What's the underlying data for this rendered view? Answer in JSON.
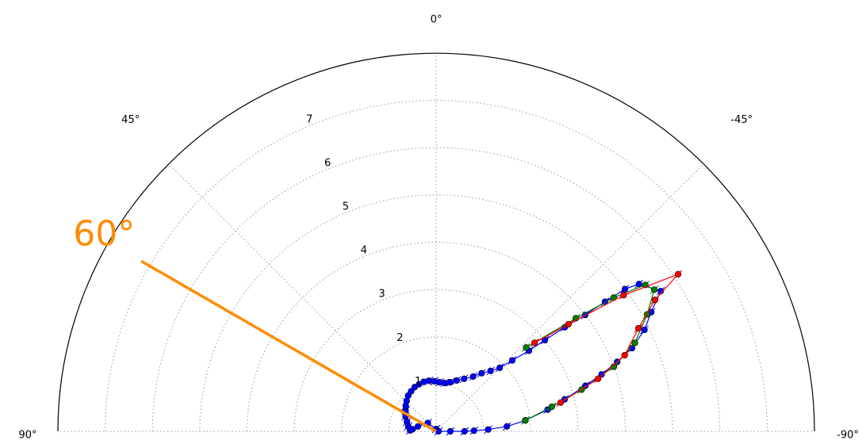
{
  "chart_data": {
    "type": "scatter",
    "projection": "polar-half",
    "theta_ticks": [
      {
        "angle": 0,
        "label": "0°"
      },
      {
        "angle": 45,
        "label": "45°"
      },
      {
        "angle": -45,
        "label": "-45°"
      },
      {
        "angle": 90,
        "label": "90°"
      },
      {
        "angle": -90,
        "label": "-90°"
      }
    ],
    "r_ticks": [
      1,
      2,
      3,
      4,
      5,
      6,
      7
    ],
    "r_tick_labels": [
      "1",
      "2",
      "3",
      "4",
      "5",
      "6",
      "7"
    ],
    "rlim": [
      0,
      8
    ],
    "theta_range": [
      -90,
      90
    ],
    "grid": true,
    "annotation": {
      "text": "60°",
      "angle": 60,
      "r": 7.2,
      "color": "#ff8c00"
    },
    "series": [
      {
        "color": "#0000ff",
        "points": [
          [
            0,
            0.05
          ],
          [
            45,
            0.25
          ],
          [
            75,
            0.4
          ],
          [
            85,
            0.5
          ],
          [
            88,
            0.55
          ],
          [
            80,
            0.6
          ],
          [
            72,
            0.65
          ],
          [
            64,
            0.72
          ],
          [
            56,
            0.78
          ],
          [
            50,
            0.84
          ],
          [
            44,
            0.9
          ],
          [
            38,
            0.96
          ],
          [
            32,
            1.0
          ],
          [
            26,
            1.04
          ],
          [
            20,
            1.06
          ],
          [
            14,
            1.08
          ],
          [
            8,
            1.08
          ],
          [
            2,
            1.06
          ],
          [
            -4,
            1.04
          ],
          [
            -10,
            1.04
          ],
          [
            -16,
            1.08
          ],
          [
            -22,
            1.16
          ],
          [
            -28,
            1.26
          ],
          [
            -34,
            1.4
          ],
          [
            -38,
            1.56
          ],
          [
            -42,
            1.72
          ],
          [
            -45,
            1.9
          ],
          [
            -47,
            2.2
          ],
          [
            -49,
            2.6
          ],
          [
            -50,
            3.0
          ],
          [
            -51,
            3.5
          ],
          [
            -52,
            4.0
          ],
          [
            -52.5,
            4.5
          ],
          [
            -53,
            5.0
          ],
          [
            -54,
            5.3
          ],
          [
            -58,
            5.6
          ],
          [
            -61,
            5.2
          ],
          [
            -64,
            4.9
          ],
          [
            -67,
            4.5
          ],
          [
            -69,
            4.1
          ],
          [
            -71,
            3.7
          ],
          [
            -73,
            3.3
          ],
          [
            -76,
            2.8
          ],
          [
            -79,
            2.4
          ],
          [
            -83,
            1.9
          ],
          [
            -86,
            1.5
          ],
          [
            -88,
            1.1
          ],
          [
            -89,
            0.8
          ],
          [
            -90,
            0.6
          ],
          [
            -90,
            0.3
          ],
          [
            -90,
            0.05
          ]
        ]
      },
      {
        "color": "#008000",
        "points": [
          [
            -47,
            2.6
          ],
          [
            -51,
            3.8
          ],
          [
            -53,
            4.7
          ],
          [
            -55,
            5.4
          ],
          [
            -57,
            5.5
          ],
          [
            -61,
            5.1
          ],
          [
            -66,
            4.6
          ],
          [
            -70,
            4.0
          ],
          [
            -74,
            3.2
          ],
          [
            -78,
            2.5
          ],
          [
            -83,
            1.9
          ]
        ]
      },
      {
        "color": "#ff0000",
        "points": [
          [
            -48,
            2.8
          ],
          [
            -51,
            3.6
          ],
          [
            -54,
            4.9
          ],
          [
            -57,
            6.1
          ],
          [
            -59,
            5.4
          ],
          [
            -63,
            4.8
          ],
          [
            -68,
            4.3
          ],
          [
            -72,
            3.6
          ],
          [
            -77,
            2.7
          ]
        ]
      }
    ]
  }
}
